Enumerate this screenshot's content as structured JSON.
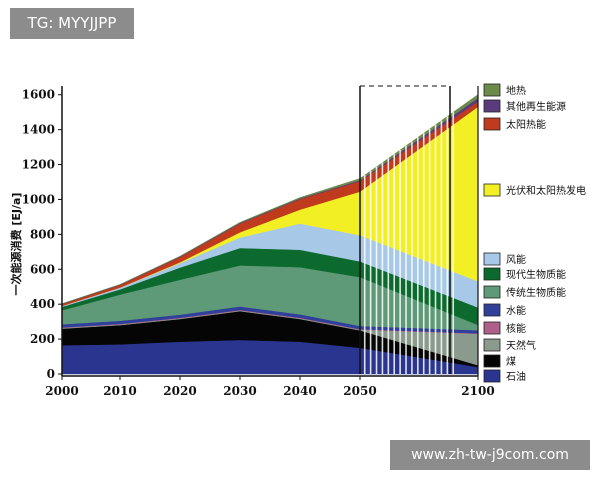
{
  "watermark_top": "TG: MYYJJPP",
  "watermark_bottom": "www.zh-tw-j9com.com",
  "chart_data": {
    "type": "area",
    "stacked": true,
    "title": "",
    "xlabel": "",
    "ylabel": "一次能源消费 [EJ/a]",
    "x": [
      2000,
      2010,
      2020,
      2030,
      2040,
      2050,
      2100
    ],
    "xticks": [
      "2000",
      "2010",
      "2020",
      "2030",
      "2040",
      "2050",
      "2100"
    ],
    "yticks": [
      "0",
      "200",
      "400",
      "600",
      "800",
      "1000",
      "1200",
      "1400",
      "1600"
    ],
    "ylim": [
      0,
      1650
    ],
    "grid": false,
    "legend_position": "right",
    "series": [
      {
        "name": "石油",
        "color": "#2a3590",
        "values": [
          165,
          170,
          185,
          195,
          185,
          150,
          40
        ]
      },
      {
        "name": "煤",
        "color": "#050505",
        "values": [
          95,
          110,
          130,
          165,
          130,
          100,
          10
        ]
      },
      {
        "name": "天然气",
        "color": "#8a9a8c",
        "values": [
          4,
          4,
          4,
          4,
          4,
          4,
          180
        ]
      },
      {
        "name": "核能",
        "color": "#b06088",
        "values": [
          3,
          3,
          3,
          3,
          3,
          3,
          3
        ]
      },
      {
        "name": "水能",
        "color": "#2f3f9a",
        "values": [
          18,
          18,
          18,
          20,
          20,
          18,
          18
        ]
      },
      {
        "name": "传统生物质能",
        "color": "#5e9a78",
        "values": [
          80,
          150,
          200,
          235,
          270,
          280,
          30
        ]
      },
      {
        "name": "现代生物质能",
        "color": "#0d6a2e",
        "values": [
          20,
          30,
          70,
          100,
          100,
          90,
          100
        ]
      },
      {
        "name": "风能",
        "color": "#a8c8e8",
        "values": [
          5,
          10,
          25,
          60,
          150,
          150,
          150
        ]
      },
      {
        "name": "光伏和太阳热发电",
        "color": "#f2f024",
        "values": [
          0,
          0,
          5,
          30,
          80,
          250,
          1000
        ]
      },
      {
        "name": "太阳热能",
        "color": "#c03a1e",
        "values": [
          10,
          15,
          30,
          50,
          60,
          60,
          30
        ]
      },
      {
        "name": "其他再生能源",
        "color": "#5a3c7c",
        "values": [
          2,
          2,
          3,
          4,
          4,
          5,
          20
        ]
      },
      {
        "name": "地热",
        "color": "#6c8a4a",
        "values": [
          1,
          1,
          2,
          3,
          5,
          10,
          20
        ]
      }
    ]
  }
}
